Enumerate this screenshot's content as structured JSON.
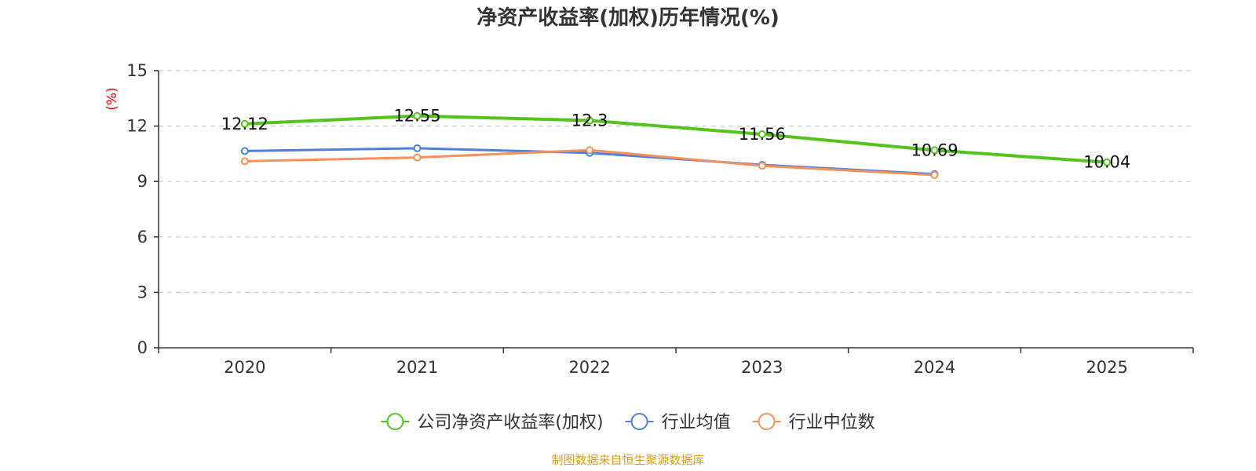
{
  "chart_data": {
    "type": "line",
    "title": "净资产收益率(加权)历年情况(%)",
    "ylabel": "(%)",
    "xlabel": "",
    "categories": [
      "2020",
      "2021",
      "2022",
      "2023",
      "2024",
      "2025"
    ],
    "ylim": [
      0,
      15
    ],
    "yticks": [
      "0",
      "3",
      "6",
      "9",
      "12",
      "15"
    ],
    "grid": true,
    "legend_position": "bottom",
    "series": [
      {
        "name": "公司净资产收益率(加权)",
        "values": [
          12.12,
          12.55,
          12.3,
          11.56,
          10.69,
          10.04
        ],
        "labels": [
          "12.12",
          "12.55",
          "12.3",
          "11.56",
          "10.69",
          "10.04"
        ],
        "color": "#52c41a"
      },
      {
        "name": "行业均值",
        "values": [
          10.65,
          10.8,
          10.55,
          9.9,
          9.4,
          null
        ],
        "color": "#4e7fdf"
      },
      {
        "name": "行业中位数",
        "values": [
          10.1,
          10.3,
          10.7,
          9.85,
          9.35,
          null
        ],
        "color": "#f5905a"
      }
    ]
  },
  "colors": {
    "ylabel": "#e60000",
    "source": "#d4a017",
    "axis": "#333333",
    "grid": "#cccccc"
  },
  "source": "制图数据来自恒生聚源数据库"
}
